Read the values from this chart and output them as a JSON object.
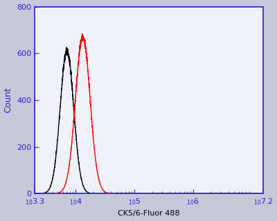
{
  "title": "",
  "xlabel": "CK5/6-Fluor 488",
  "ylabel": "Count",
  "xlim_log": [
    3.3,
    7.2
  ],
  "ylim": [
    0,
    800
  ],
  "yticks": [
    0,
    200,
    400,
    600,
    800
  ],
  "fig_facecolor": "#c8c8dc",
  "ax_facecolor": "#f0f0f8",
  "spine_color": "#2222cc",
  "tick_color": "#2222cc",
  "label_color": "#000000",
  "axis_label_color": "#2222cc",
  "black_peak_log": 3.85,
  "black_sigma_log": 0.115,
  "black_height": 610,
  "red_peak_log": 4.12,
  "red_sigma_log": 0.125,
  "red_height": 670,
  "line_color_black": "#000000",
  "line_color_red": "#ff0000",
  "line_width": 1.0,
  "noise_amplitude": 8.0,
  "noise_seed": 42
}
